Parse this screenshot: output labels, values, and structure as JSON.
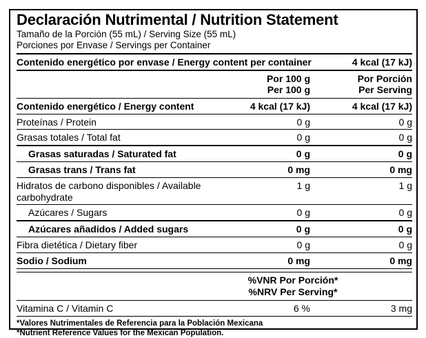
{
  "colors": {
    "text": "#000000",
    "background": "#ffffff",
    "rule": "#000000"
  },
  "label": {
    "title": "Declaración Nutrimental / Nutrition Statement",
    "serving_size": "Tamaño de la Porción (55 mL) / Serving Size (55 mL)",
    "servings_per_container": "Porciones por Envase / Servings per Container",
    "energy_per_container": {
      "label": "Contenido energético por envase / Energy content per container",
      "value": "4 kcal (17 kJ)"
    },
    "column_headers": {
      "per100_line1": "Por 100 g",
      "per100_line2": "Per 100 g",
      "serving_line1": "Por Porción",
      "serving_line2": "Per Serving"
    },
    "rows": [
      {
        "label": "Contenido energético / Energy content",
        "per100": "4 kcal (17 kJ)",
        "per_serving": "4 kcal (17 kJ)",
        "bold": true,
        "indent": false,
        "thick_top": false
      },
      {
        "label": "Proteínas / Protein",
        "per100": "0 g",
        "per_serving": "0 g",
        "bold": false,
        "indent": false,
        "thick_top": false
      },
      {
        "label": "Grasas totales / Total fat",
        "per100": "0 g",
        "per_serving": "0 g",
        "bold": false,
        "indent": false,
        "thick_top": false
      },
      {
        "label": "Grasas saturadas / Saturated fat",
        "per100": "0 g",
        "per_serving": "0 g",
        "bold": true,
        "indent": true,
        "thick_top": true
      },
      {
        "label": "Grasas trans / Trans fat",
        "per100": "0 mg",
        "per_serving": "0 mg",
        "bold": true,
        "indent": true,
        "thick_top": false
      },
      {
        "label": "Hidratos de carbono disponibles / Available carbohydrate",
        "per100": "1 g",
        "per_serving": "1 g",
        "bold": false,
        "indent": false,
        "thick_top": false
      },
      {
        "label": "Azúcares / Sugars",
        "per100": "0 g",
        "per_serving": "0 g",
        "bold": false,
        "indent": true,
        "thick_top": false
      },
      {
        "label": "Azúcares añadidos / Added sugars",
        "per100": "0 g",
        "per_serving": "0 g",
        "bold": true,
        "indent": true,
        "thick_top": true
      },
      {
        "label": "Fibra dietética / Dietary fiber",
        "per100": "0 g",
        "per_serving": "0 g",
        "bold": false,
        "indent": false,
        "thick_top": false
      },
      {
        "label": "Sodio / Sodium",
        "per100": "0 mg",
        "per_serving": "0 mg",
        "bold": true,
        "indent": false,
        "thick_top": false
      }
    ],
    "nrv_header": {
      "line1": "%VNR Por Porción*",
      "line2": "%NRV Per Serving*"
    },
    "vitamin_row": {
      "label": "Vitamina C / Vitamin C",
      "nrv_percent": "6 %",
      "per_serving": "3 mg"
    },
    "footnotes": {
      "line1": "*Valores Nutrimentales de Referencia para la Población Mexicana",
      "line2": "*Nutrient Reference Values for the Mexican Population."
    }
  }
}
